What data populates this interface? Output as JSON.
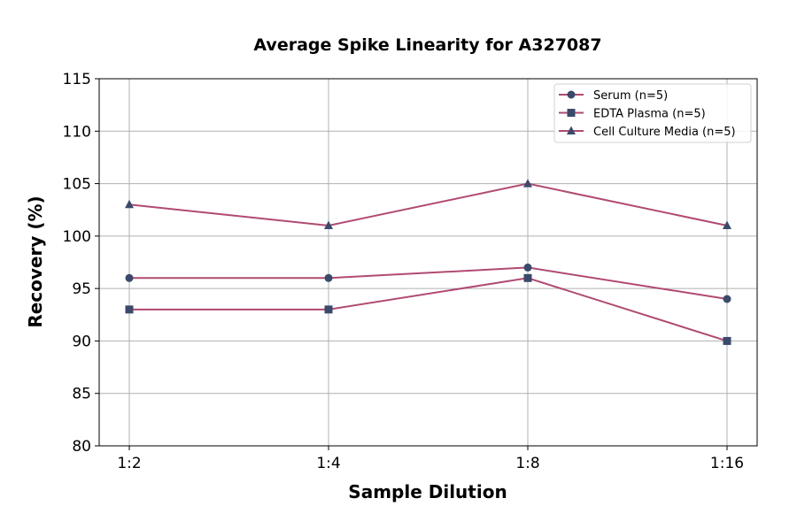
{
  "chart_data": {
    "type": "line",
    "title": "Average Spike Linearity for A327087",
    "xlabel": "Sample Dilution",
    "ylabel": "Recovery (%)",
    "categories": [
      "1:2",
      "1:4",
      "1:8",
      "1:16"
    ],
    "ylim": [
      80,
      115
    ],
    "yticks": [
      80,
      85,
      90,
      95,
      100,
      105,
      110,
      115
    ],
    "grid": true,
    "legend_position": "top-right",
    "line_color": "#b04a72",
    "marker_color": "#3b4a6b",
    "series": [
      {
        "name": "Serum (n=5)",
        "marker": "circle",
        "values": [
          96,
          96,
          97,
          94
        ]
      },
      {
        "name": "EDTA Plasma (n=5)",
        "marker": "square",
        "values": [
          93,
          93,
          96,
          90
        ]
      },
      {
        "name": "Cell Culture Media (n=5)",
        "marker": "triangle",
        "values": [
          103,
          101,
          105,
          101
        ]
      }
    ]
  }
}
